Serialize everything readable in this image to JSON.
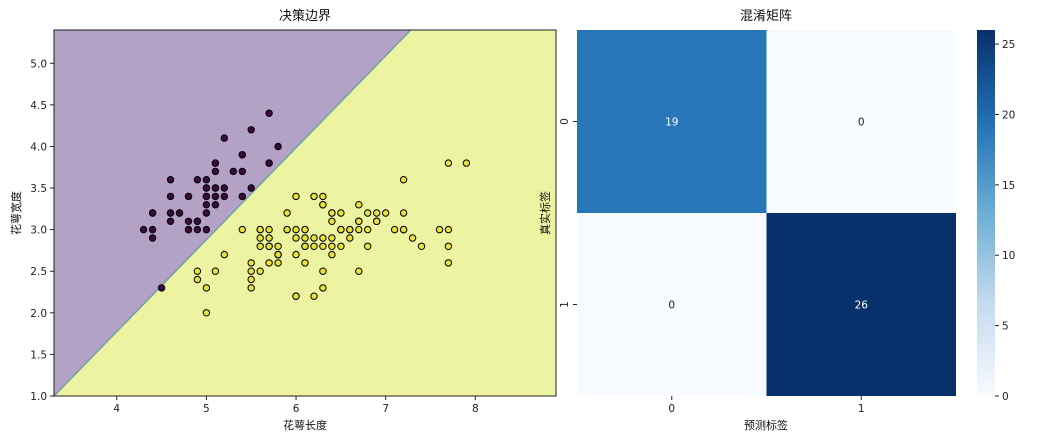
{
  "chart_data": [
    {
      "type": "scatter",
      "title": "决策边界",
      "xlabel": "花萼长度",
      "ylabel": "花萼宽度",
      "xlim": [
        3.3,
        8.9
      ],
      "ylim": [
        1.0,
        5.4
      ],
      "xticks": [
        4,
        5,
        6,
        7,
        8
      ],
      "yticks": [
        1.0,
        1.5,
        2.0,
        2.5,
        3.0,
        3.5,
        4.0,
        4.5,
        5.0
      ],
      "grid": false,
      "decision_boundary": {
        "x": [
          3.3,
          7.28
        ],
        "y": [
          1.0,
          5.4
        ]
      },
      "region_colors": {
        "upper_left": "#b3a2c6",
        "lower_right": "#ecf4a2",
        "boundary": "#6fa3a3"
      },
      "series": [
        {
          "color": "#3b0a3f",
          "points": [
            [
              5.1,
              3.5
            ],
            [
              4.9,
              3.0
            ],
            [
              4.7,
              3.2
            ],
            [
              4.6,
              3.1
            ],
            [
              5.0,
              3.6
            ],
            [
              5.4,
              3.9
            ],
            [
              4.6,
              3.4
            ],
            [
              5.0,
              3.4
            ],
            [
              4.4,
              2.9
            ],
            [
              4.9,
              3.1
            ],
            [
              5.4,
              3.7
            ],
            [
              4.8,
              3.4
            ],
            [
              4.8,
              3.0
            ],
            [
              4.3,
              3.0
            ],
            [
              5.8,
              4.0
            ],
            [
              5.7,
              4.4
            ],
            [
              5.4,
              3.9
            ],
            [
              5.1,
              3.5
            ],
            [
              5.7,
              3.8
            ],
            [
              5.1,
              3.8
            ],
            [
              5.4,
              3.4
            ],
            [
              5.1,
              3.7
            ],
            [
              4.6,
              3.6
            ],
            [
              5.1,
              3.3
            ],
            [
              4.8,
              3.4
            ],
            [
              5.0,
              3.0
            ],
            [
              5.0,
              3.4
            ],
            [
              5.2,
              3.5
            ],
            [
              5.2,
              3.4
            ],
            [
              4.7,
              3.2
            ],
            [
              4.8,
              3.1
            ],
            [
              5.4,
              3.4
            ],
            [
              5.2,
              4.1
            ],
            [
              5.5,
              4.2
            ],
            [
              4.9,
              3.1
            ],
            [
              5.0,
              3.2
            ],
            [
              5.5,
              3.5
            ],
            [
              4.4,
              3.0
            ],
            [
              5.1,
              3.4
            ],
            [
              5.0,
              3.5
            ],
            [
              4.5,
              2.3
            ],
            [
              4.4,
              3.2
            ],
            [
              5.0,
              3.5
            ],
            [
              5.1,
              3.8
            ],
            [
              4.8,
              3.0
            ],
            [
              4.6,
              3.2
            ],
            [
              5.3,
              3.7
            ],
            [
              5.0,
              3.3
            ],
            [
              4.4,
              3.2
            ],
            [
              4.9,
              3.6
            ],
            [
              5.7,
              3.8
            ],
            [
              4.6,
              3.2
            ]
          ]
        },
        {
          "color": "#e9e23a",
          "points": [
            [
              7.0,
              3.2
            ],
            [
              6.4,
              3.2
            ],
            [
              6.9,
              3.1
            ],
            [
              5.5,
              2.3
            ],
            [
              6.5,
              2.8
            ],
            [
              5.7,
              2.8
            ],
            [
              6.3,
              3.3
            ],
            [
              4.9,
              2.4
            ],
            [
              6.6,
              2.9
            ],
            [
              5.2,
              2.7
            ],
            [
              5.0,
              2.0
            ],
            [
              5.9,
              3.0
            ],
            [
              6.0,
              2.2
            ],
            [
              6.1,
              2.9
            ],
            [
              5.6,
              2.9
            ],
            [
              6.7,
              3.1
            ],
            [
              5.6,
              3.0
            ],
            [
              5.8,
              2.7
            ],
            [
              6.2,
              2.2
            ],
            [
              5.6,
              2.5
            ],
            [
              5.9,
              3.2
            ],
            [
              6.1,
              2.8
            ],
            [
              6.3,
              2.5
            ],
            [
              6.4,
              2.9
            ],
            [
              6.6,
              3.0
            ],
            [
              6.8,
              2.8
            ],
            [
              6.7,
              3.0
            ],
            [
              6.0,
              2.9
            ],
            [
              5.7,
              2.6
            ],
            [
              5.5,
              2.4
            ],
            [
              5.8,
              2.7
            ],
            [
              6.0,
              2.7
            ],
            [
              5.4,
              3.0
            ],
            [
              6.0,
              3.4
            ],
            [
              6.7,
              3.1
            ],
            [
              6.3,
              2.3
            ],
            [
              5.6,
              3.0
            ],
            [
              5.5,
              2.5
            ],
            [
              5.5,
              2.6
            ],
            [
              6.1,
              3.0
            ],
            [
              5.8,
              2.6
            ],
            [
              5.0,
              2.3
            ],
            [
              5.7,
              3.0
            ],
            [
              5.7,
              2.9
            ],
            [
              6.2,
              2.9
            ],
            [
              5.1,
              2.5
            ],
            [
              6.3,
              3.3
            ],
            [
              7.1,
              3.0
            ],
            [
              6.5,
              3.0
            ],
            [
              7.6,
              3.0
            ],
            [
              7.3,
              2.9
            ],
            [
              6.7,
              2.5
            ],
            [
              7.2,
              3.6
            ],
            [
              6.5,
              3.2
            ],
            [
              6.8,
              3.0
            ],
            [
              5.8,
              2.8
            ],
            [
              6.4,
              3.2
            ],
            [
              7.7,
              3.8
            ],
            [
              7.7,
              2.6
            ],
            [
              6.9,
              3.2
            ],
            [
              5.6,
              2.8
            ],
            [
              7.7,
              2.8
            ],
            [
              6.7,
              3.3
            ],
            [
              7.2,
              3.2
            ],
            [
              6.2,
              2.8
            ],
            [
              6.1,
              3.0
            ],
            [
              7.2,
              3.0
            ],
            [
              7.4,
              2.8
            ],
            [
              7.9,
              3.8
            ],
            [
              6.3,
              2.8
            ],
            [
              6.1,
              2.6
            ],
            [
              6.4,
              3.1
            ],
            [
              6.0,
              3.0
            ],
            [
              6.9,
              3.1
            ],
            [
              6.7,
              3.1
            ],
            [
              5.8,
              2.7
            ],
            [
              6.8,
              3.2
            ],
            [
              6.5,
              3.0
            ],
            [
              6.2,
              3.4
            ],
            [
              5.9,
              3.0
            ],
            [
              7.7,
              3.0
            ],
            [
              6.3,
              3.4
            ],
            [
              4.9,
              2.5
            ],
            [
              6.4,
              2.7
            ],
            [
              7.2,
              3.0
            ],
            [
              6.3,
              2.9
            ],
            [
              6.1,
              2.8
            ],
            [
              5.7,
              2.8
            ],
            [
              6.9,
              3.1
            ],
            [
              6.0,
              2.2
            ],
            [
              5.8,
              2.7
            ],
            [
              6.5,
              3.0
            ],
            [
              6.4,
              2.8
            ],
            [
              6.6,
              3.0
            ]
          ]
        }
      ]
    },
    {
      "type": "heatmap",
      "title": "混淆矩阵",
      "xlabel": "预测标签",
      "ylabel": "真实标签",
      "x_categories": [
        "0",
        "1"
      ],
      "y_categories": [
        "0",
        "1"
      ],
      "values": [
        [
          19,
          0
        ],
        [
          0,
          26
        ]
      ],
      "value_labels": [
        [
          "19",
          "0"
        ],
        [
          "0",
          "26"
        ]
      ],
      "colormap": "Blues",
      "colorbar": {
        "min": 0,
        "max": 26,
        "ticks": [
          "0",
          "5",
          "10",
          "15",
          "20",
          "25"
        ]
      }
    }
  ]
}
